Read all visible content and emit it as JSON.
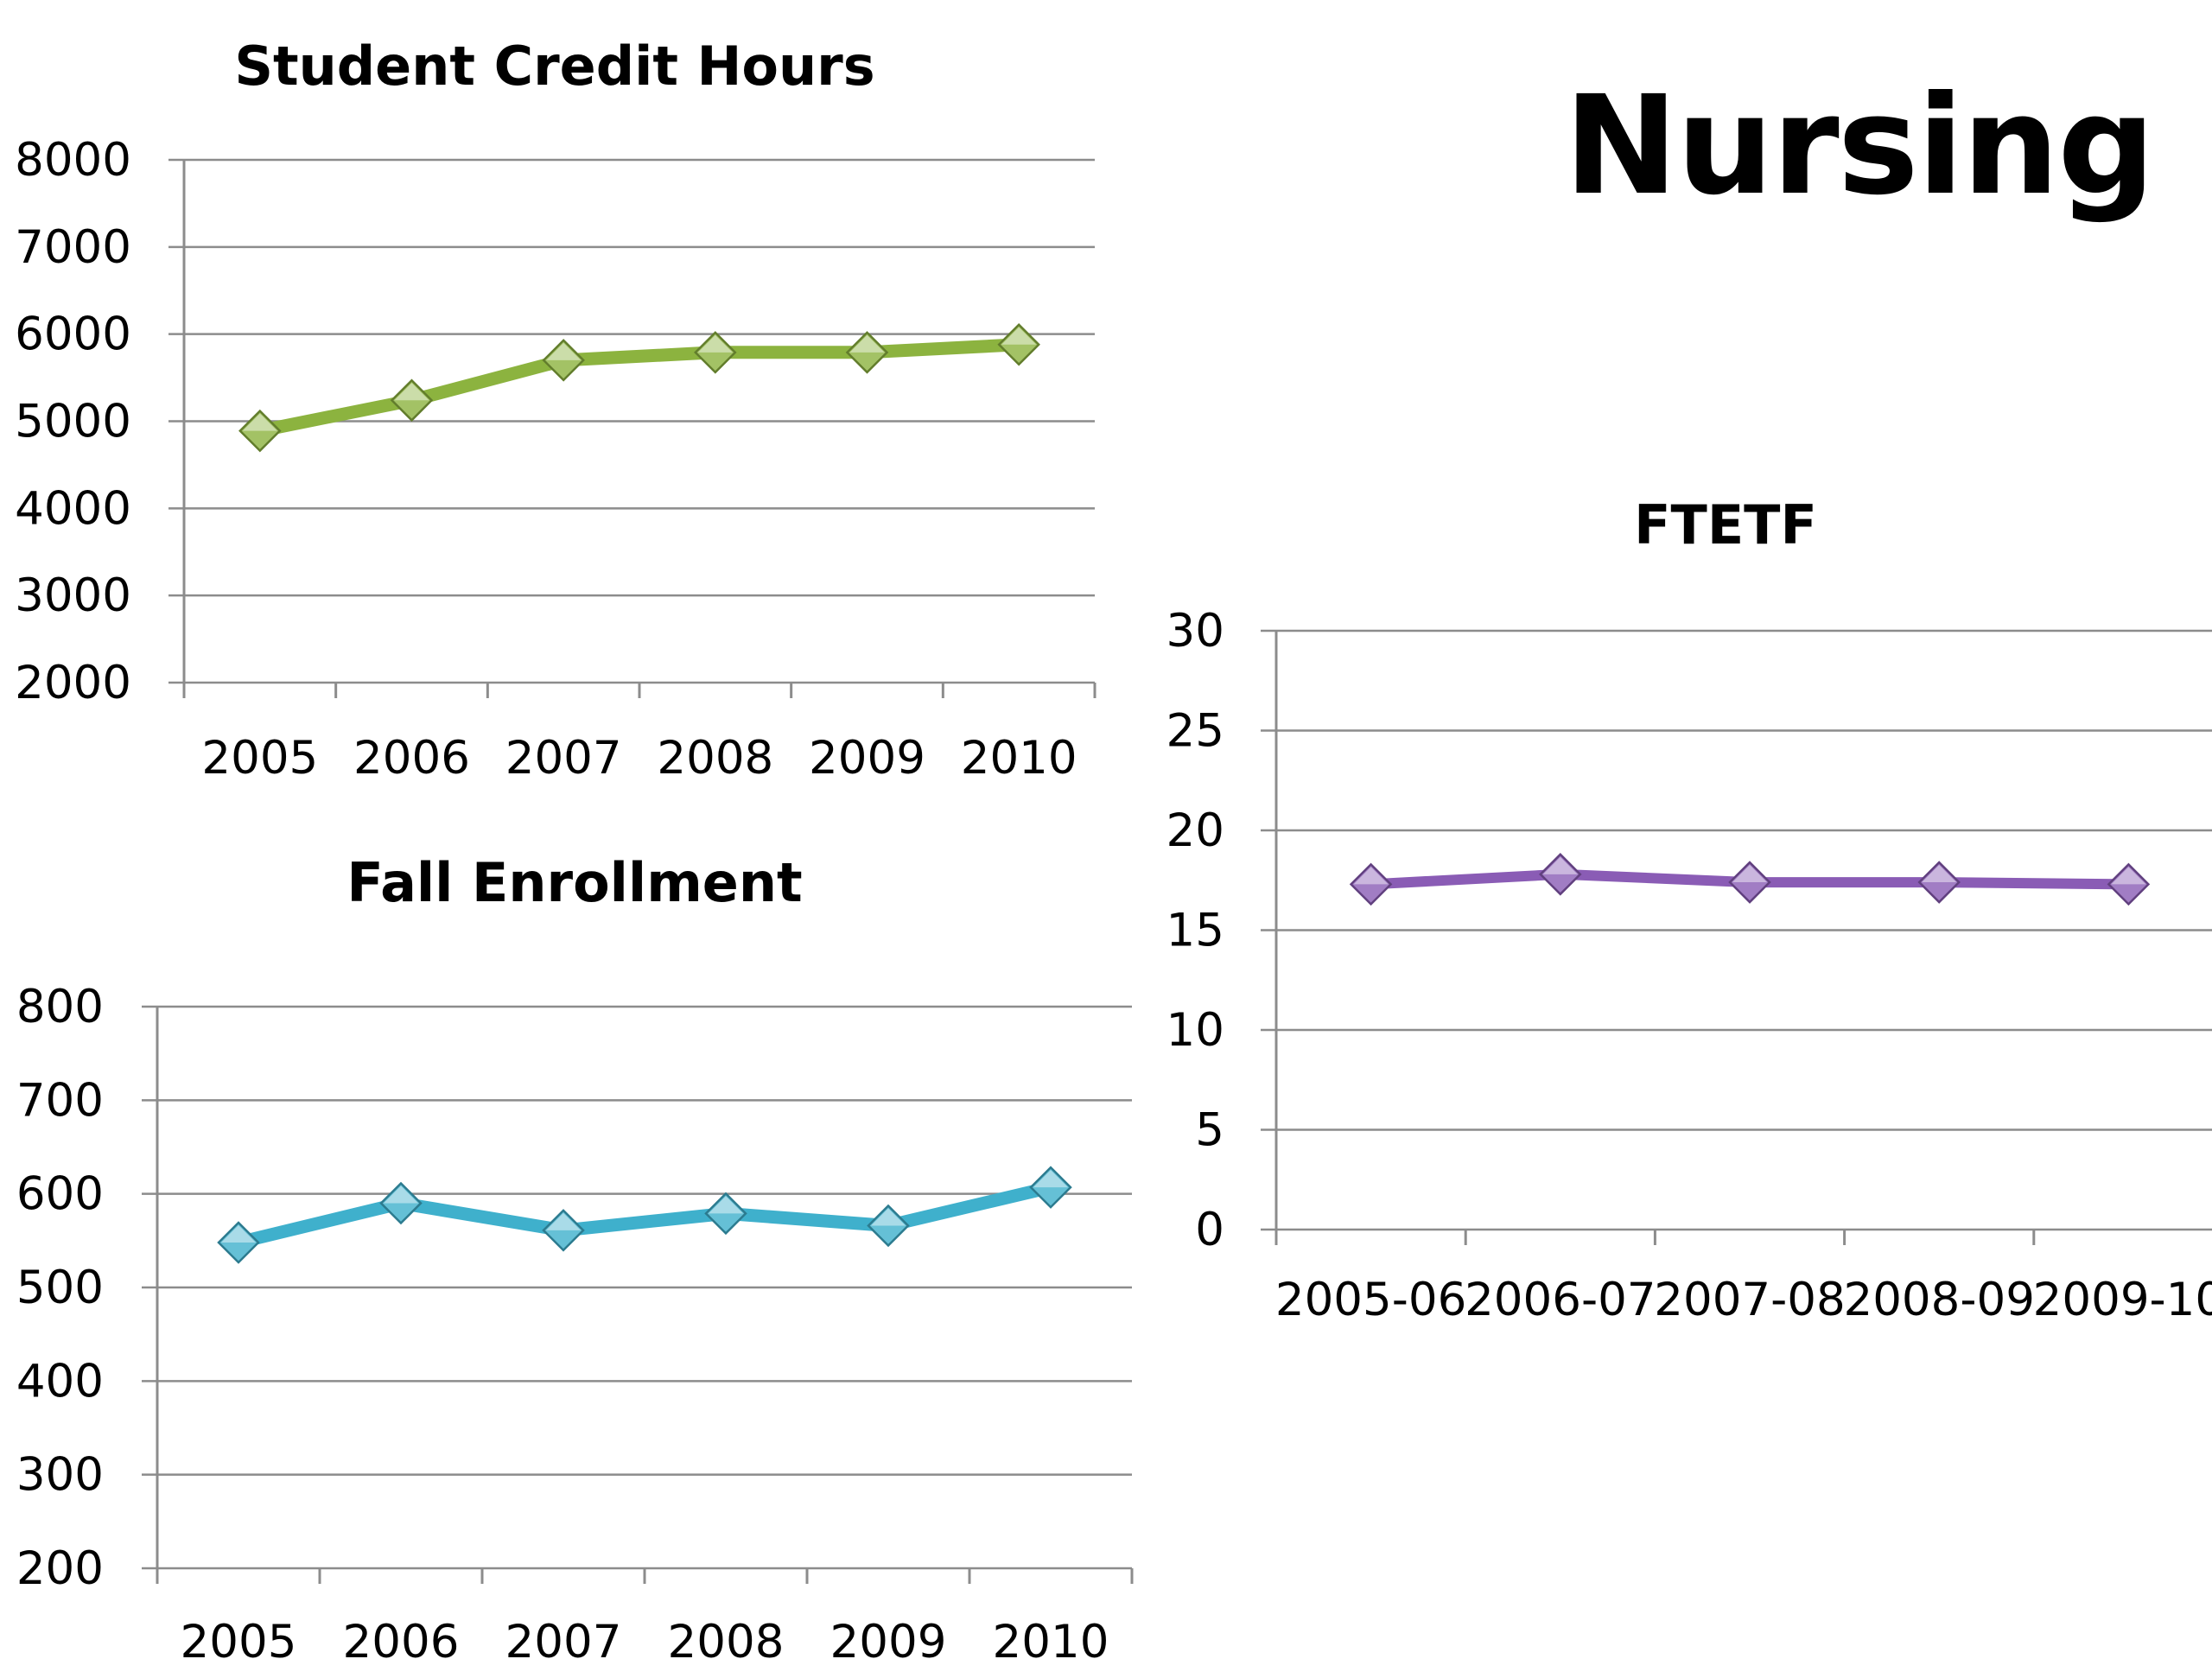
{
  "slide": {
    "title": "Nursing"
  },
  "colors": {
    "student_credit_hours": "#8cb33f",
    "fall_enrollment": "#3fb0cc",
    "ftetf": "#8a5cb5",
    "gridline": "#8c8c8c"
  },
  "chart_data": [
    {
      "id": "sch",
      "type": "line",
      "title": "Student Credit Hours",
      "categories": [
        "2005",
        "2006",
        "2007",
        "2008",
        "2009",
        "2010"
      ],
      "series": [
        {
          "values": [
            4890,
            5240,
            5700,
            5790,
            5790,
            5880
          ]
        }
      ],
      "yticks": [
        "2000",
        "3000",
        "4000",
        "5000",
        "6000",
        "7000",
        "8000"
      ],
      "ylim": [
        2000,
        8000
      ],
      "grid": true,
      "marker": "diamond"
    },
    {
      "id": "fe",
      "type": "line",
      "title": "Fall Enrollment",
      "categories": [
        "2005",
        "2006",
        "2007",
        "2008",
        "2009",
        "2010"
      ],
      "series": [
        {
          "values": [
            548,
            590,
            561,
            579,
            566,
            607
          ]
        }
      ],
      "yticks": [
        "200",
        "300",
        "400",
        "500",
        "600",
        "700",
        "800"
      ],
      "ylim": [
        200,
        800
      ],
      "grid": true,
      "marker": "diamond"
    },
    {
      "id": "ftetf",
      "type": "line",
      "title": "FTETF",
      "categories": [
        "2005-06",
        "2006-07",
        "2007-08",
        "2008-09",
        "2009-10"
      ],
      "series": [
        {
          "values": [
            17.3,
            17.8,
            17.4,
            17.4,
            17.3
          ]
        }
      ],
      "yticks": [
        "0",
        "5",
        "10",
        "15",
        "20",
        "25",
        "30"
      ],
      "ylim": [
        0,
        30
      ],
      "grid": true,
      "marker": "diamond"
    }
  ]
}
